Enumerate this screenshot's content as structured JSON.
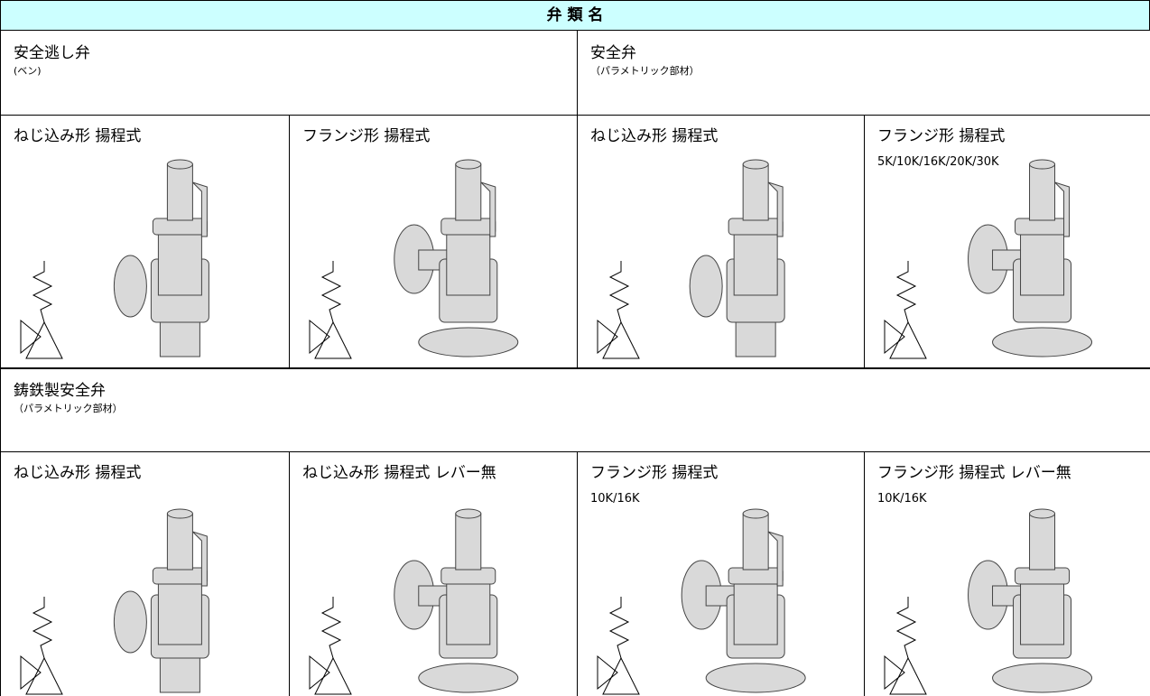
{
  "header": {
    "title": "弁 類 名"
  },
  "sections": [
    {
      "groups": [
        {
          "name": "安全逃し弁",
          "note": "(ベン)"
        },
        {
          "name": "安全弁",
          "note": "（パラメトリック部材）"
        }
      ],
      "items": [
        {
          "name": "ねじ込み形 揚程式"
        },
        {
          "name": "フランジ形 揚程式"
        },
        {
          "name": "ねじ込み形 揚程式"
        },
        {
          "name": "フランジ形 揚程式",
          "spec": "5K/10K/16K/20K/30K"
        }
      ]
    },
    {
      "groups": [
        {
          "name": "鋳鉄製安全弁",
          "note": "（パラメトリック部材）"
        }
      ],
      "items": [
        {
          "name": "ねじ込み形 揚程式"
        },
        {
          "name": "ねじ込み形 揚程式 レバー無"
        },
        {
          "name": "フランジ形 揚程式",
          "spec": "10K/16K"
        },
        {
          "name": "フランジ形 揚程式 レバー無",
          "spec": "10K/16K"
        }
      ]
    }
  ]
}
